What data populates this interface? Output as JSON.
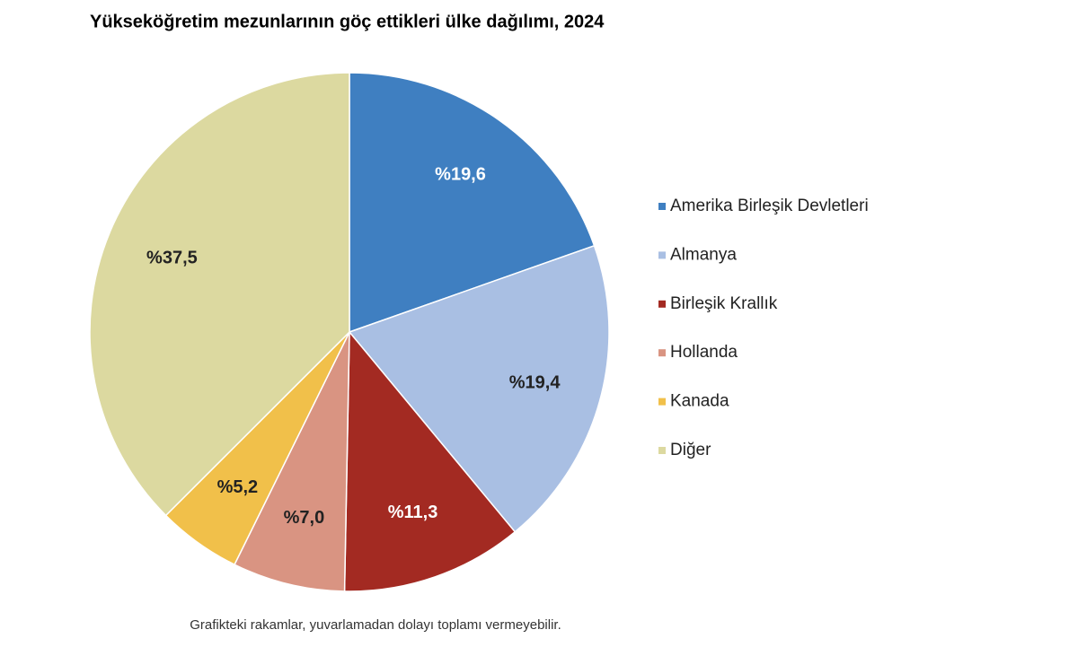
{
  "chart_data": {
    "type": "pie",
    "title": "Yükseköğretim mezunlarının göç ettikleri ülke dağılımı, 2024",
    "categories": [
      "Amerika Birleşik Devletleri",
      "Almanya",
      "Birleşik Krallık",
      "Hollanda",
      "Kanada",
      "Diğer"
    ],
    "values": [
      19.6,
      19.4,
      11.3,
      7.0,
      5.2,
      37.5
    ],
    "value_labels": [
      "%19,6",
      "%19,4",
      "%11,3",
      "%7,0",
      "%5,2",
      "%37,5"
    ],
    "colors": [
      "#3f7fc1",
      "#a9bfe3",
      "#a32a22",
      "#d99482",
      "#f1c04a",
      "#dcd9a0"
    ],
    "legend": "right",
    "note": "Grafikteki rakamlar, yuvarlamadan dolayı toplamı vermeyebilir."
  }
}
